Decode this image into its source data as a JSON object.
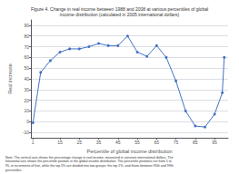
{
  "chart_data": {
    "type": "line",
    "title": "Figure 4. Change in real income between 1988 and 2008 at various percentiles of global",
    "subtitle": "income distribution (calculated in 2005 international dollars)",
    "xlabel": "Percentile of global income distribution",
    "ylabel": "Real increase",
    "x": [
      1,
      5,
      10,
      15,
      20,
      25,
      30,
      35,
      40,
      45,
      50,
      55,
      60,
      65,
      70,
      75,
      80,
      85,
      90,
      95,
      99,
      100
    ],
    "values": [
      -1,
      46,
      57,
      65,
      68,
      68,
      70,
      73,
      71,
      71,
      80,
      65,
      61,
      71,
      60,
      38,
      10,
      -4,
      -5,
      7,
      27,
      60
    ],
    "color": "#4472C4",
    "marker": "circle",
    "xlim": [
      0,
      102
    ],
    "ylim": [
      -15,
      95
    ],
    "xticks": [
      1,
      15,
      25,
      35,
      45,
      55,
      65,
      75,
      85,
      95
    ],
    "yticks": [
      -10,
      0,
      10,
      20,
      30,
      40,
      50,
      60,
      70,
      80,
      90
    ],
    "grid": "y",
    "annotations": [
      "Note: The vertical axis shows the percentage change in real income, measured in constant international dollars. The\nhorizontal axis shows the percentile position in the global income distribution. The percentile positions run from 5 to\n95, in increments of five, while the top 5% are divided into two groups: the top 1%, and those between 95th and 99th\npercentiles."
    ]
  }
}
